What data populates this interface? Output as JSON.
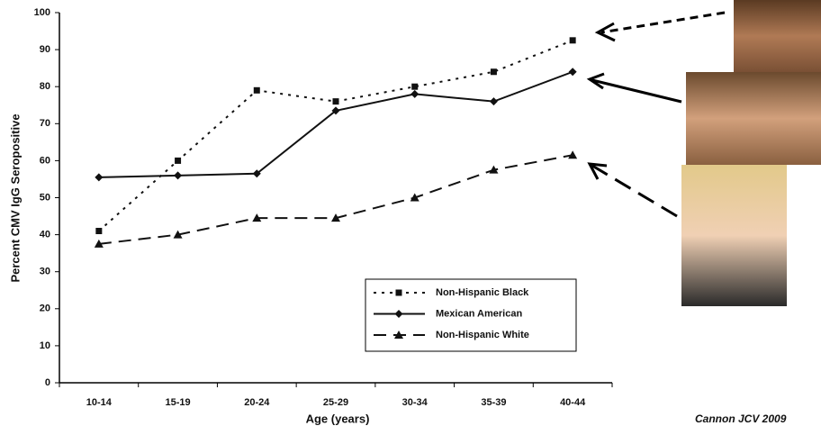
{
  "chart_data": {
    "type": "line",
    "x_label": "Age (years)",
    "y_label": "Percent CMV IgG Seropositive",
    "categories": [
      "10-14",
      "15-19",
      "20-24",
      "25-29",
      "30-34",
      "35-39",
      "40-44"
    ],
    "series": [
      {
        "name": "Non-Hispanic Black",
        "color": "#111111",
        "dash": "3,6",
        "marker": "square",
        "values": [
          41,
          60,
          79,
          76,
          80,
          84,
          92.5
        ]
      },
      {
        "name": "Mexican American",
        "color": "#111111",
        "dash": "none",
        "marker": "diamond",
        "values": [
          55.5,
          56,
          56.5,
          73.5,
          78,
          76,
          84
        ]
      },
      {
        "name": "Non-Hispanic White",
        "color": "#111111",
        "dash": "14,8",
        "marker": "triangle",
        "values": [
          37.5,
          40,
          44.5,
          44.5,
          50,
          57.5,
          61.5
        ]
      }
    ],
    "ylim": [
      0,
      100
    ],
    "yticks": [
      0,
      10,
      20,
      30,
      40,
      50,
      60,
      70,
      80,
      90,
      100
    ],
    "grid": false,
    "legend": "lower right",
    "citation": "Cannon JCV 2009"
  }
}
